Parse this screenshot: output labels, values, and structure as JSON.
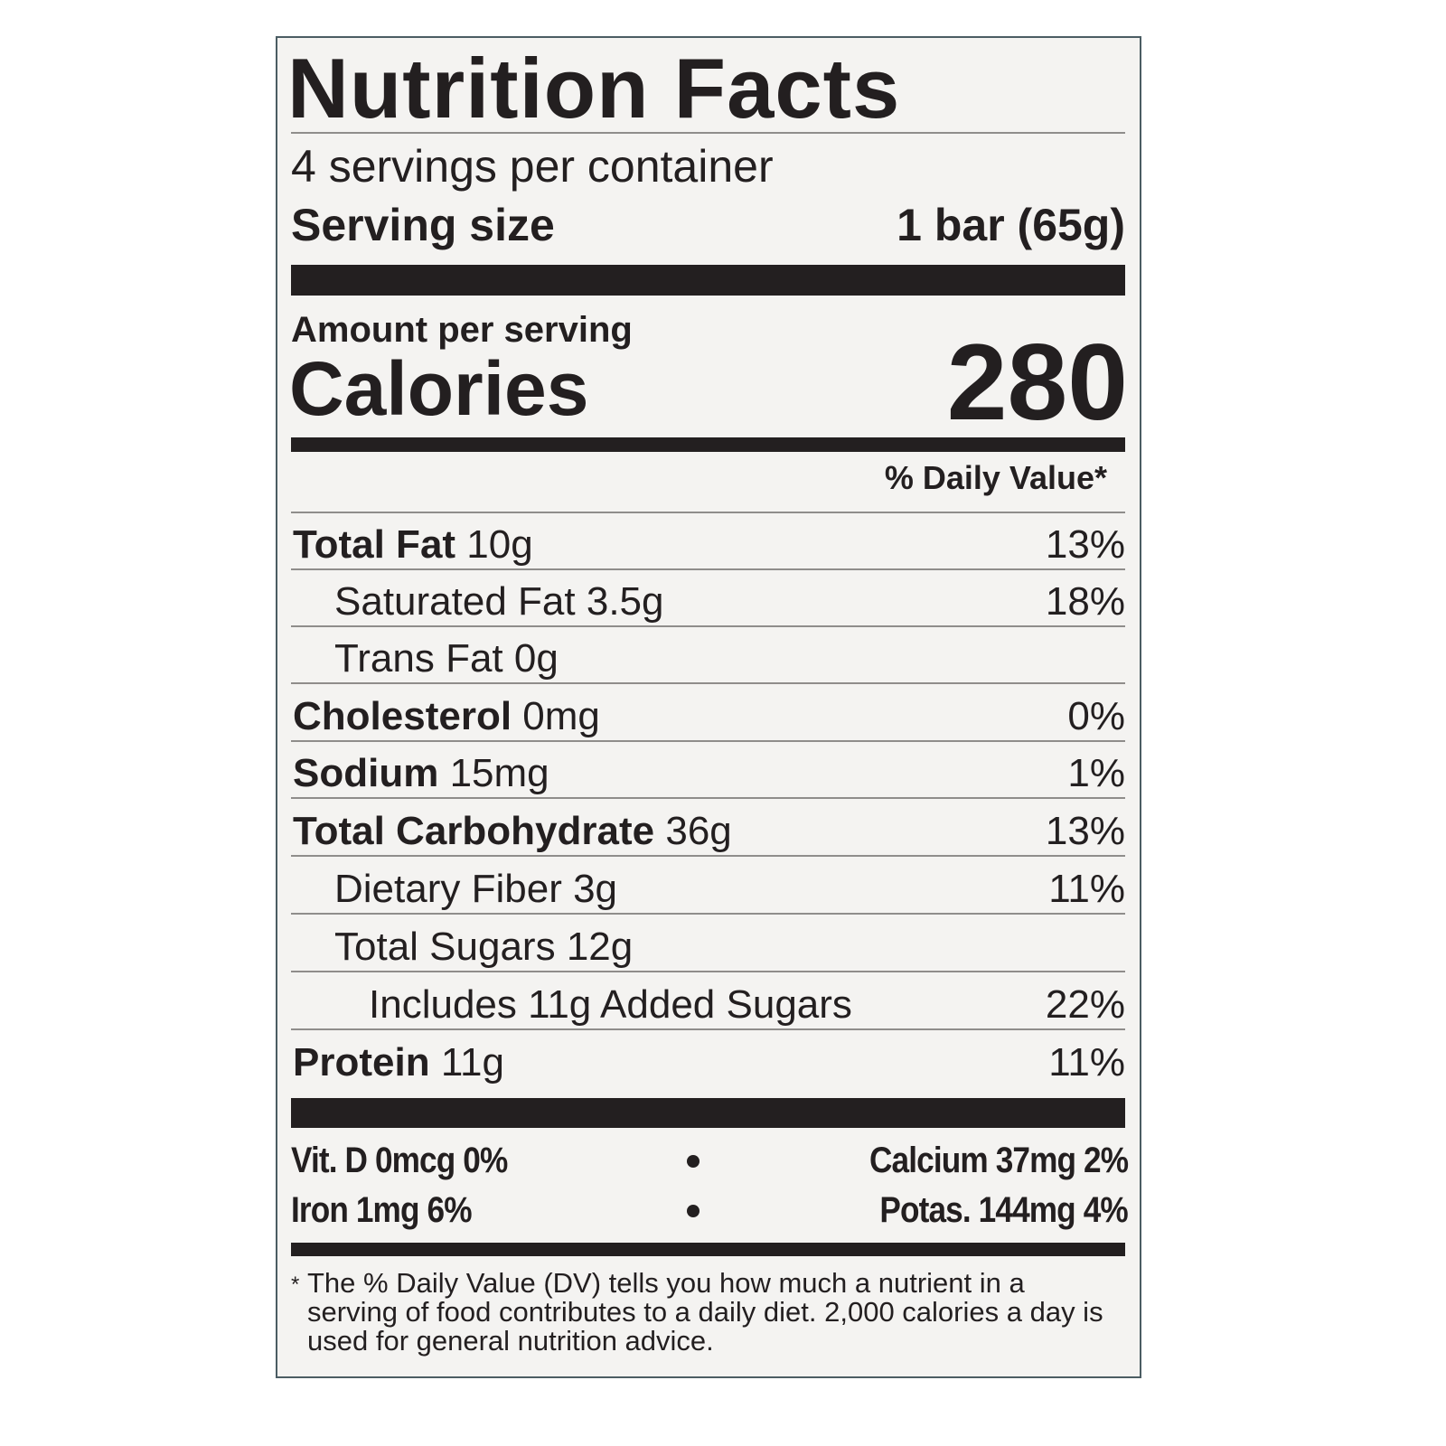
{
  "label": {
    "title": "Nutrition Facts",
    "servings": "4 servings per container",
    "serving_size": {
      "label": "Serving size",
      "value": "1 bar (65g)"
    },
    "amount_per_serving": "Amount per serving",
    "calories": {
      "label": "Calories",
      "value": "280"
    },
    "daily_value_header": "% Daily Value*",
    "rows": [
      {
        "name": "Total Fat",
        "amount": "10g",
        "dv": "13%"
      },
      {
        "name": "Saturated Fat",
        "amount": "3.5g",
        "dv": "18%"
      },
      {
        "name": "Trans Fat",
        "amount": "0g"
      },
      {
        "name": "Cholesterol",
        "amount": "0mg",
        "dv": "0%"
      },
      {
        "name": "Sodium",
        "amount": "15mg",
        "dv": "1%"
      },
      {
        "name": "Total Carbohydrate",
        "amount": "36g",
        "dv": "13%"
      },
      {
        "name": "Dietary Fiber",
        "amount": "3g",
        "dv": "11%"
      },
      {
        "name": "Total Sugars",
        "amount": "12g"
      },
      {
        "name": "Includes 11g Added Sugars",
        "dv": "22%"
      },
      {
        "name": "Protein",
        "amount": "11g",
        "dv": "11%"
      }
    ],
    "vitamins": [
      [
        "Vit. D 0mcg 0%",
        "Calcium 37mg 2%"
      ],
      [
        "Iron 1mg 6%",
        "Potas. 144mg 4%"
      ]
    ],
    "footnote": {
      "mark": "*",
      "text": "The % Daily Value (DV) tells you how much a nutrient in a serving of food contributes to a daily diet. 2,000 calories a day is used for general nutrition advice."
    }
  }
}
